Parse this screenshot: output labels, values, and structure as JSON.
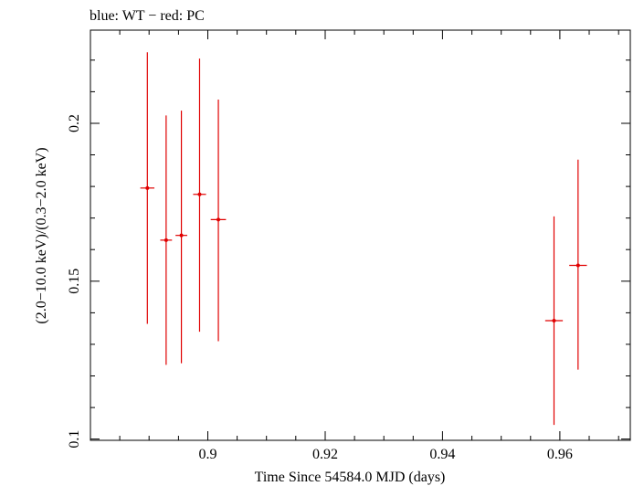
{
  "chart_data": {
    "type": "scatter",
    "title": "blue: WT − red: PC",
    "xlabel": "Time Since 54584.0 MJD (days)",
    "ylabel": "(2.0−10.0 keV)/(0.3−2.0 keV)",
    "xlim": [
      0.88,
      0.972
    ],
    "ylim": [
      0.0996,
      0.2295
    ],
    "x_ticks": [
      0.9,
      0.92,
      0.94,
      0.96
    ],
    "x_tick_labels": [
      "0.9",
      "0.92",
      "0.94",
      "0.96"
    ],
    "y_ticks": [
      0.1,
      0.15,
      0.2
    ],
    "y_tick_labels": [
      "0.1",
      "0.15",
      "0.2"
    ],
    "grid": false,
    "series": [
      {
        "name": "PC",
        "color": "#e00000",
        "points": [
          {
            "x": 0.8897,
            "xerr": 0.0012,
            "y": 0.1795,
            "ylo": 0.1365,
            "yhi": 0.2225
          },
          {
            "x": 0.8929,
            "xerr": 0.001,
            "y": 0.163,
            "ylo": 0.1235,
            "yhi": 0.2025
          },
          {
            "x": 0.8955,
            "xerr": 0.001,
            "y": 0.1645,
            "ylo": 0.124,
            "yhi": 0.204
          },
          {
            "x": 0.8986,
            "xerr": 0.0011,
            "y": 0.1775,
            "ylo": 0.134,
            "yhi": 0.2205
          },
          {
            "x": 0.9018,
            "xerr": 0.0013,
            "y": 0.1695,
            "ylo": 0.131,
            "yhi": 0.2075
          },
          {
            "x": 0.959,
            "xerr": 0.0015,
            "y": 0.1375,
            "ylo": 0.1045,
            "yhi": 0.1705
          },
          {
            "x": 0.9631,
            "xerr": 0.0015,
            "y": 0.155,
            "ylo": 0.122,
            "yhi": 0.1885
          }
        ]
      }
    ]
  }
}
